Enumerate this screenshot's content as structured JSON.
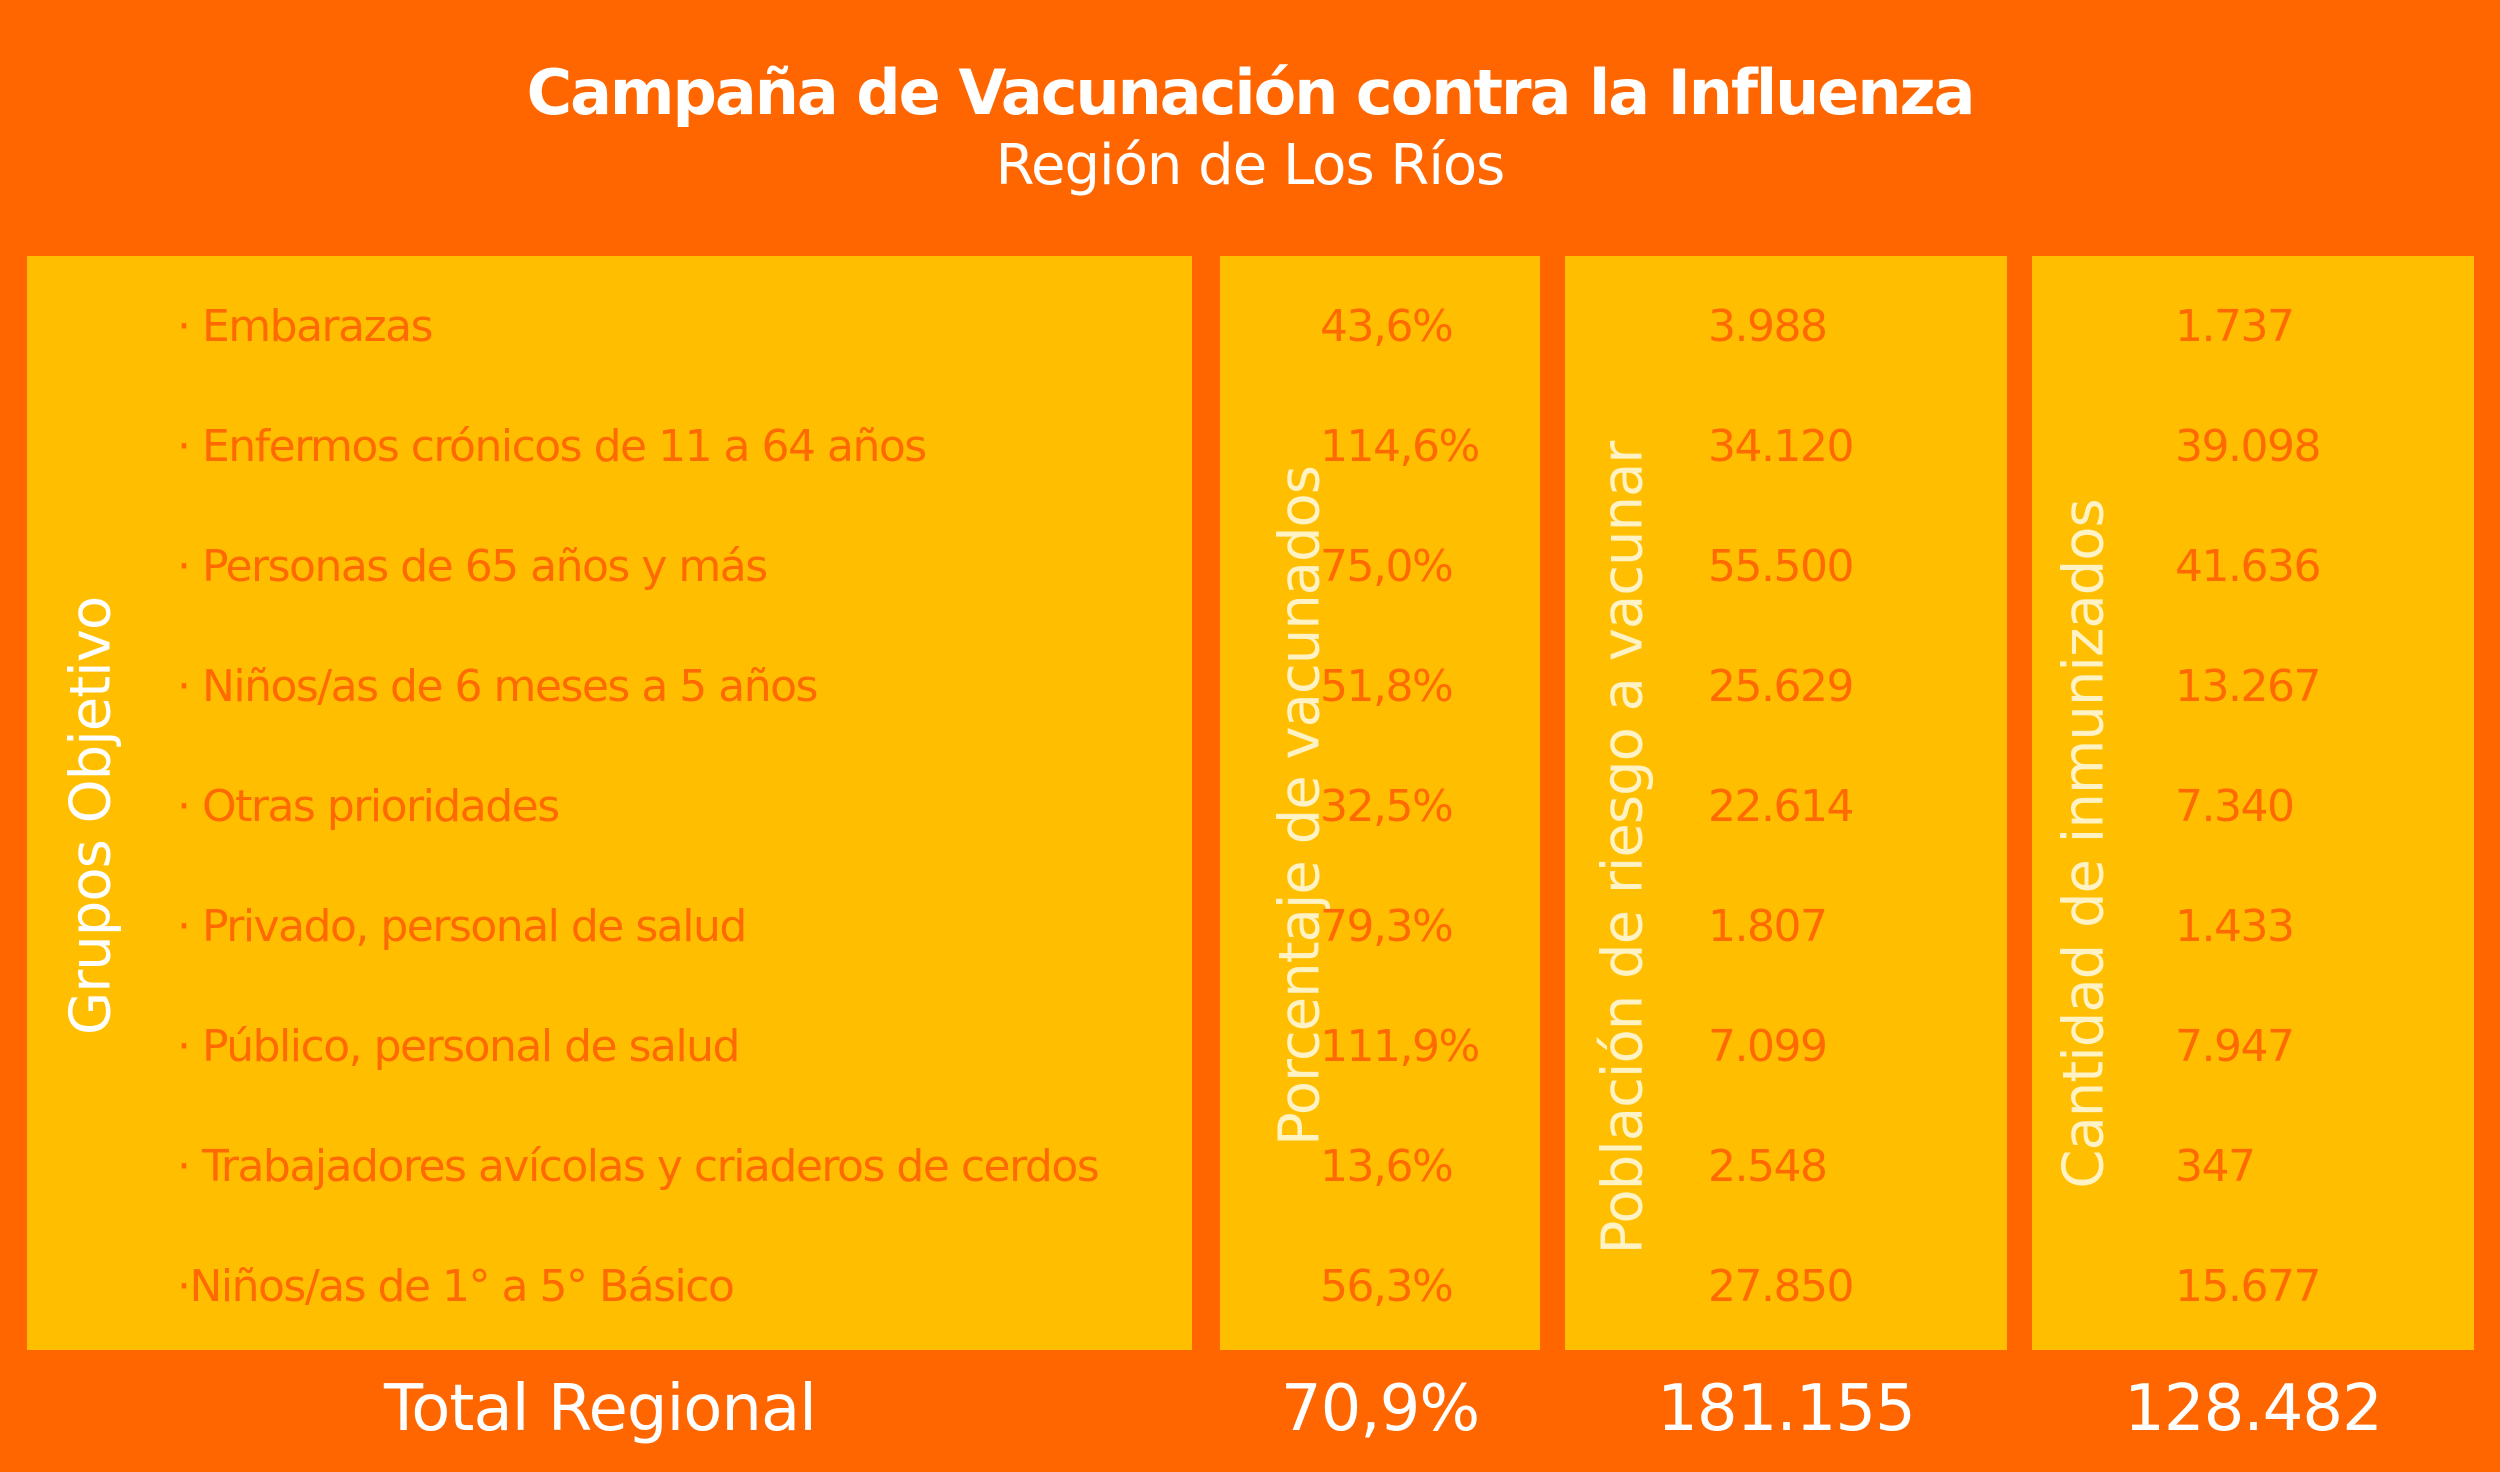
{
  "header": {
    "title": "Campaña de Vacunación contra la Influenza",
    "subtitle": "Región de Los Ríos"
  },
  "columns": {
    "groups_label": "Grupos Objetivo",
    "percent_label": "Porcentaje de vacunados",
    "population_label": "Población de riesgo a vacunar",
    "immunized_label": "Cantidad de inmunizados"
  },
  "rows": [
    {
      "group": "· Embarazas",
      "percent": "43,6%",
      "population": "3.988",
      "immunized": "1.737"
    },
    {
      "group": "· Enfermos crónicos de 11 a 64 años",
      "percent": "114,6%",
      "population": "34.120",
      "immunized": "39.098"
    },
    {
      "group": "· Personas de 65 años y más",
      "percent": "75,0%",
      "population": "55.500",
      "immunized": "41.636"
    },
    {
      "group": "· Niños/as de 6 meses a 5 años",
      "percent": "51,8%",
      "population": "25.629",
      "immunized": "13.267"
    },
    {
      "group": "· Otras prioridades",
      "percent": "32,5%",
      "population": "22.614",
      "immunized": "7.340"
    },
    {
      "group": "· Privado, personal de salud",
      "percent": "79,3%",
      "population": "1.807",
      "immunized": "1.433"
    },
    {
      "group": "· Público, personal de salud",
      "percent": "111,9%",
      "population": "7.099",
      "immunized": "7.947"
    },
    {
      "group": "· Trabajadores avícolas y criaderos de cerdos",
      "percent": "13,6%",
      "population": "2.548",
      "immunized": "347"
    },
    {
      "group": "·Niños/as de 1° a 5° Básico",
      "percent": "56,3%",
      "population": "27.850",
      "immunized": "15.677"
    }
  ],
  "total": {
    "label": "Total Regional",
    "percent": "70,9%",
    "population": "181.155",
    "immunized": "128.482"
  },
  "colors": {
    "background": "#ff6600",
    "panel": "#ffbf00",
    "row_text": "#ff6a00",
    "header_text": "#ffffff"
  }
}
